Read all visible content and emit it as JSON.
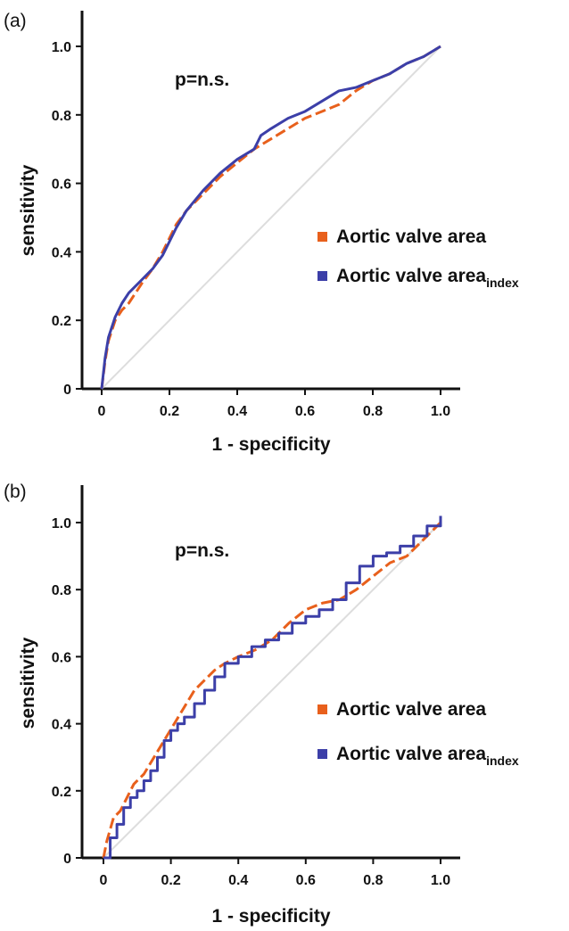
{
  "chart_data": [
    {
      "type": "line",
      "panel_label": "(a)",
      "annotation": "p=n.s.",
      "xlabel": "1 - specificity",
      "ylabel": "sensitivity",
      "xlim": [
        0,
        1.0
      ],
      "ylim": [
        0,
        1.0
      ],
      "xticks": [
        "0",
        "0.2",
        "0.4",
        "0.6",
        "0.8",
        "1.0"
      ],
      "yticks": [
        "0",
        "0.2",
        "0.4",
        "0.6",
        "0.8",
        "1.0"
      ],
      "grid": false,
      "legend_position": "right",
      "reference_line": {
        "x": [
          0,
          1
        ],
        "y": [
          0,
          1
        ],
        "color": "#dddddd"
      },
      "series": [
        {
          "name": "Aortic valve area",
          "color": "#e8601c",
          "style": "dashed",
          "x": [
            0,
            0.01,
            0.02,
            0.04,
            0.06,
            0.08,
            0.1,
            0.12,
            0.15,
            0.18,
            0.2,
            0.22,
            0.25,
            0.3,
            0.35,
            0.4,
            0.45,
            0.5,
            0.55,
            0.6,
            0.65,
            0.7,
            0.75,
            0.8,
            0.85,
            0.9,
            0.95,
            1.0
          ],
          "y": [
            0,
            0.08,
            0.14,
            0.2,
            0.23,
            0.25,
            0.28,
            0.31,
            0.35,
            0.4,
            0.44,
            0.48,
            0.52,
            0.57,
            0.62,
            0.66,
            0.7,
            0.73,
            0.76,
            0.79,
            0.81,
            0.83,
            0.87,
            0.9,
            0.92,
            0.95,
            0.97,
            1.0
          ]
        },
        {
          "name": "Aortic valve area",
          "name_subscript": "index",
          "color": "#3c3fa8",
          "style": "solid",
          "x": [
            0,
            0.01,
            0.02,
            0.04,
            0.06,
            0.08,
            0.1,
            0.12,
            0.15,
            0.18,
            0.2,
            0.22,
            0.25,
            0.3,
            0.35,
            0.4,
            0.45,
            0.47,
            0.5,
            0.55,
            0.6,
            0.65,
            0.7,
            0.75,
            0.8,
            0.85,
            0.9,
            0.95,
            1.0
          ],
          "y": [
            0,
            0.09,
            0.15,
            0.21,
            0.25,
            0.28,
            0.3,
            0.32,
            0.35,
            0.39,
            0.43,
            0.47,
            0.52,
            0.58,
            0.63,
            0.67,
            0.7,
            0.74,
            0.76,
            0.79,
            0.81,
            0.84,
            0.87,
            0.88,
            0.9,
            0.92,
            0.95,
            0.97,
            1.0
          ]
        }
      ]
    },
    {
      "type": "line",
      "panel_label": "(b)",
      "annotation": "p=n.s.",
      "xlabel": "1 - specificity",
      "ylabel": "sensitivity",
      "xlim": [
        0,
        1.0
      ],
      "ylim": [
        0,
        1.0
      ],
      "xticks": [
        "0",
        "0.2",
        "0.4",
        "0.6",
        "0.8",
        "1.0"
      ],
      "yticks": [
        "0",
        "0.2",
        "0.4",
        "0.6",
        "0.8",
        "1.0"
      ],
      "grid": false,
      "legend_position": "right",
      "reference_line": {
        "x": [
          0,
          1
        ],
        "y": [
          0,
          1
        ],
        "color": "#dddddd"
      },
      "series": [
        {
          "name": "Aortic valve area",
          "color": "#e8601c",
          "style": "dashed",
          "x": [
            0,
            0.01,
            0.03,
            0.05,
            0.07,
            0.09,
            0.12,
            0.15,
            0.18,
            0.21,
            0.24,
            0.27,
            0.3,
            0.33,
            0.36,
            0.4,
            0.45,
            0.5,
            0.55,
            0.6,
            0.65,
            0.7,
            0.75,
            0.8,
            0.85,
            0.9,
            0.95,
            1.0
          ],
          "y": [
            0,
            0.05,
            0.12,
            0.14,
            0.18,
            0.22,
            0.25,
            0.3,
            0.35,
            0.4,
            0.45,
            0.5,
            0.53,
            0.56,
            0.58,
            0.6,
            0.62,
            0.65,
            0.7,
            0.74,
            0.76,
            0.77,
            0.8,
            0.84,
            0.88,
            0.9,
            0.95,
            1.0
          ]
        },
        {
          "name": "Aortic valve area",
          "name_subscript": "index",
          "color": "#3c3fa8",
          "style": "solid",
          "x": [
            0,
            0.02,
            0.04,
            0.06,
            0.08,
            0.1,
            0.12,
            0.14,
            0.16,
            0.18,
            0.2,
            0.22,
            0.24,
            0.27,
            0.3,
            0.33,
            0.36,
            0.4,
            0.44,
            0.48,
            0.52,
            0.56,
            0.6,
            0.64,
            0.68,
            0.72,
            0.76,
            0.8,
            0.84,
            0.88,
            0.92,
            0.96,
            1.0
          ],
          "y": [
            0,
            0.06,
            0.1,
            0.15,
            0.18,
            0.2,
            0.23,
            0.26,
            0.3,
            0.35,
            0.38,
            0.4,
            0.42,
            0.46,
            0.5,
            0.54,
            0.58,
            0.6,
            0.63,
            0.65,
            0.67,
            0.7,
            0.72,
            0.74,
            0.77,
            0.82,
            0.87,
            0.9,
            0.91,
            0.93,
            0.96,
            0.99,
            1.02
          ]
        }
      ]
    }
  ]
}
